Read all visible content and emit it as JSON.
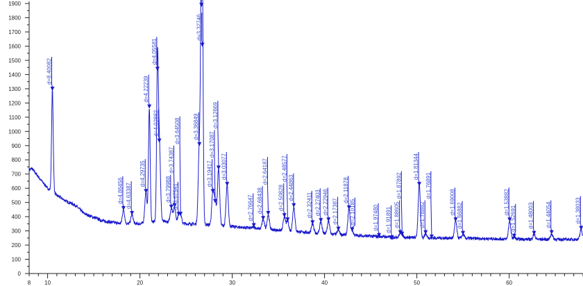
{
  "chart_data": {
    "type": "line",
    "title": "",
    "xlabel": "",
    "ylabel": "",
    "xlim": [
      8,
      68
    ],
    "ylim": [
      0,
      1900
    ],
    "grid": false,
    "line_color": "#1a1acc",
    "label_color": "#3a4fd0",
    "x_ticks": [
      8,
      10,
      20,
      30,
      40,
      50,
      60
    ],
    "y_ticks": [
      0,
      100,
      200,
      300,
      400,
      500,
      600,
      700,
      800,
      900,
      1000,
      1100,
      1200,
      1300,
      1400,
      1500,
      1600,
      1700,
      1800,
      1900
    ],
    "background": {
      "x": [
        8,
        8.3,
        9,
        10,
        10.3,
        11,
        12,
        13,
        14,
        15,
        16,
        18,
        20,
        22,
        25,
        27,
        30,
        35,
        40,
        45,
        50,
        55,
        60,
        65,
        68
      ],
      "y": [
        730,
        740,
        680,
        600,
        585,
        550,
        510,
        480,
        420,
        395,
        370,
        350,
        350,
        370,
        350,
        345,
        330,
        305,
        280,
        262,
        252,
        248,
        242,
        240,
        240
      ]
    },
    "peaks": [
      {
        "x": 10.52,
        "y": 1290,
        "label": "d=8.40082"
      },
      {
        "x": 18.22,
        "y": 450,
        "label": "d=4.86456"
      },
      {
        "x": 19.14,
        "y": 415,
        "label": "d=4.63387"
      },
      {
        "x": 20.65,
        "y": 570,
        "label": "d=4.29735"
      },
      {
        "x": 21.02,
        "y": 1165,
        "label": "d=4.22239"
      },
      {
        "x": 21.9,
        "y": 1430,
        "label": "d=4.05581"
      },
      {
        "x": 22.1,
        "y": 925,
        "label": "d=4.02882"
      },
      {
        "x": 23.4,
        "y": 460,
        "label": "d=3.79988"
      },
      {
        "x": 23.75,
        "y": 470,
        "label": "d=3.74387"
      },
      {
        "x": 24.2,
        "y": 410,
        "label": "d=3.67541"
      },
      {
        "x": 24.4,
        "y": 410,
        "label": "d=3.64508"
      },
      {
        "x": 26.44,
        "y": 900,
        "label": "d=3.36849"
      },
      {
        "x": 26.66,
        "y": 1880,
        "label": ""
      },
      {
        "x": 26.77,
        "y": 1600,
        "label": "d=3.32746"
      },
      {
        "x": 27.9,
        "y": 570,
        "label": "d=3.19417"
      },
      {
        "x": 28.15,
        "y": 500,
        "label": "d=3.17087"
      },
      {
        "x": 28.52,
        "y": 735,
        "label": "d=3.12669"
      },
      {
        "x": 29.45,
        "y": 620,
        "label": "d=3.03077"
      },
      {
        "x": 32.34,
        "y": 330,
        "label": "d=2.76647"
      },
      {
        "x": 33.35,
        "y": 380,
        "label": "d=2.68438"
      },
      {
        "x": 33.9,
        "y": 415,
        "label": "d=2.64187"
      },
      {
        "x": 35.65,
        "y": 400,
        "label": "d=2.50828"
      },
      {
        "x": 36.0,
        "y": 370,
        "label": "d=2.48577"
      },
      {
        "x": 36.67,
        "y": 470,
        "label": "d=2.44863"
      },
      {
        "x": 38.7,
        "y": 350,
        "label": "d=2.32411"
      },
      {
        "x": 39.6,
        "y": 365,
        "label": "d=2.27403"
      },
      {
        "x": 40.43,
        "y": 370,
        "label": "d=2.22946"
      },
      {
        "x": 41.5,
        "y": 305,
        "label": "d=2.17387"
      },
      {
        "x": 42.65,
        "y": 455,
        "label": "d=2.11878"
      },
      {
        "x": 43.0,
        "y": 300,
        "label": "d=2.10185"
      },
      {
        "x": 45.9,
        "y": 260,
        "label": "d=1.97480"
      },
      {
        "x": 47.3,
        "y": 245,
        "label": "d=1.91891"
      },
      {
        "x": 48.2,
        "y": 280,
        "label": "d=1.88605"
      },
      {
        "x": 48.4,
        "y": 270,
        "label": "d=1.87892"
      },
      {
        "x": 50.26,
        "y": 620,
        "label": "d=1.81344"
      },
      {
        "x": 50.95,
        "y": 280,
        "label": "d=1.78882"
      },
      {
        "x": 51.6,
        "y": 250,
        "label": "d=1.76891"
      },
      {
        "x": 54.2,
        "y": 370,
        "label": "d=1.69008"
      },
      {
        "x": 55.0,
        "y": 275,
        "label": "d=1.66882"
      },
      {
        "x": 60.05,
        "y": 370,
        "label": "d=1.53882"
      },
      {
        "x": 60.55,
        "y": 255,
        "label": "d=1.52691"
      },
      {
        "x": 62.7,
        "y": 275,
        "label": "d=1.48003"
      },
      {
        "x": 64.6,
        "y": 280,
        "label": "d=1.44054"
      },
      {
        "x": 67.8,
        "y": 310,
        "label": "d=1.38033"
      }
    ]
  }
}
